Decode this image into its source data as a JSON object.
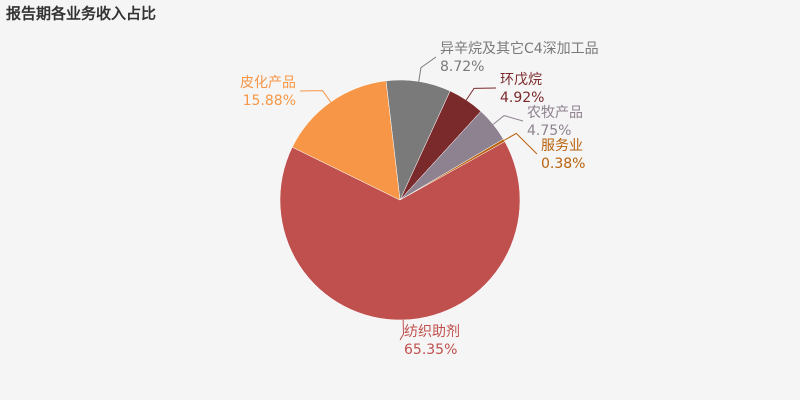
{
  "chart_data": {
    "type": "pie",
    "title": "报告期各业务收入占比",
    "categories": [
      "异辛烷及其它C4深加工品",
      "环戊烷",
      "农牧产品",
      "服务业",
      "纺织助剂",
      "皮化产品"
    ],
    "values": [
      8.72,
      4.92,
      4.75,
      0.38,
      65.35,
      15.88
    ],
    "value_labels": [
      "8.72%",
      "4.92%",
      "4.75%",
      "0.38%",
      "65.35%",
      "15.88%"
    ],
    "colors": [
      "#7a7a7a",
      "#7b2a2c",
      "#8e8290",
      "#b8620e",
      "#c0504d",
      "#f79646"
    ]
  }
}
